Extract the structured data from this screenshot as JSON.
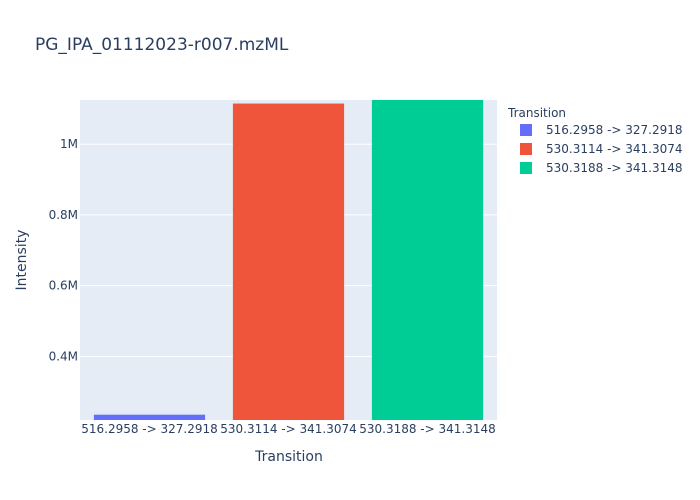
{
  "chart_data": {
    "type": "bar",
    "title": "PG_IPA_01112023-r007.mzML",
    "xlabel": "Transition",
    "ylabel": "Intensity",
    "legend_title": "Transition",
    "legend_position": "right",
    "grid": true,
    "categories": [
      "516.2958 -> 327.2918",
      "530.3114 -> 341.3074",
      "530.3188 -> 341.3148"
    ],
    "series": [
      {
        "name": "516.2958 -> 327.2918",
        "category": "516.2958 -> 327.2918",
        "value": 235000,
        "color": "#636efa"
      },
      {
        "name": "530.3114 -> 341.3074",
        "category": "530.3114 -> 341.3074",
        "value": 1115000,
        "color": "#EF553B"
      },
      {
        "name": "530.3188 -> 341.3148",
        "category": "530.3188 -> 341.3148",
        "value": 1130000,
        "color": "#00cc96"
      }
    ],
    "ylim": [
      220000,
      1125000
    ],
    "yticks": [
      400000,
      600000,
      800000,
      1000000
    ],
    "ytick_labels": [
      "0.4M",
      "0.6M",
      "0.8M",
      "1M"
    ]
  },
  "colors": {
    "plot_bg": "#E5ECF6",
    "grid": "#ffffff",
    "text": "#2a3f5f"
  }
}
